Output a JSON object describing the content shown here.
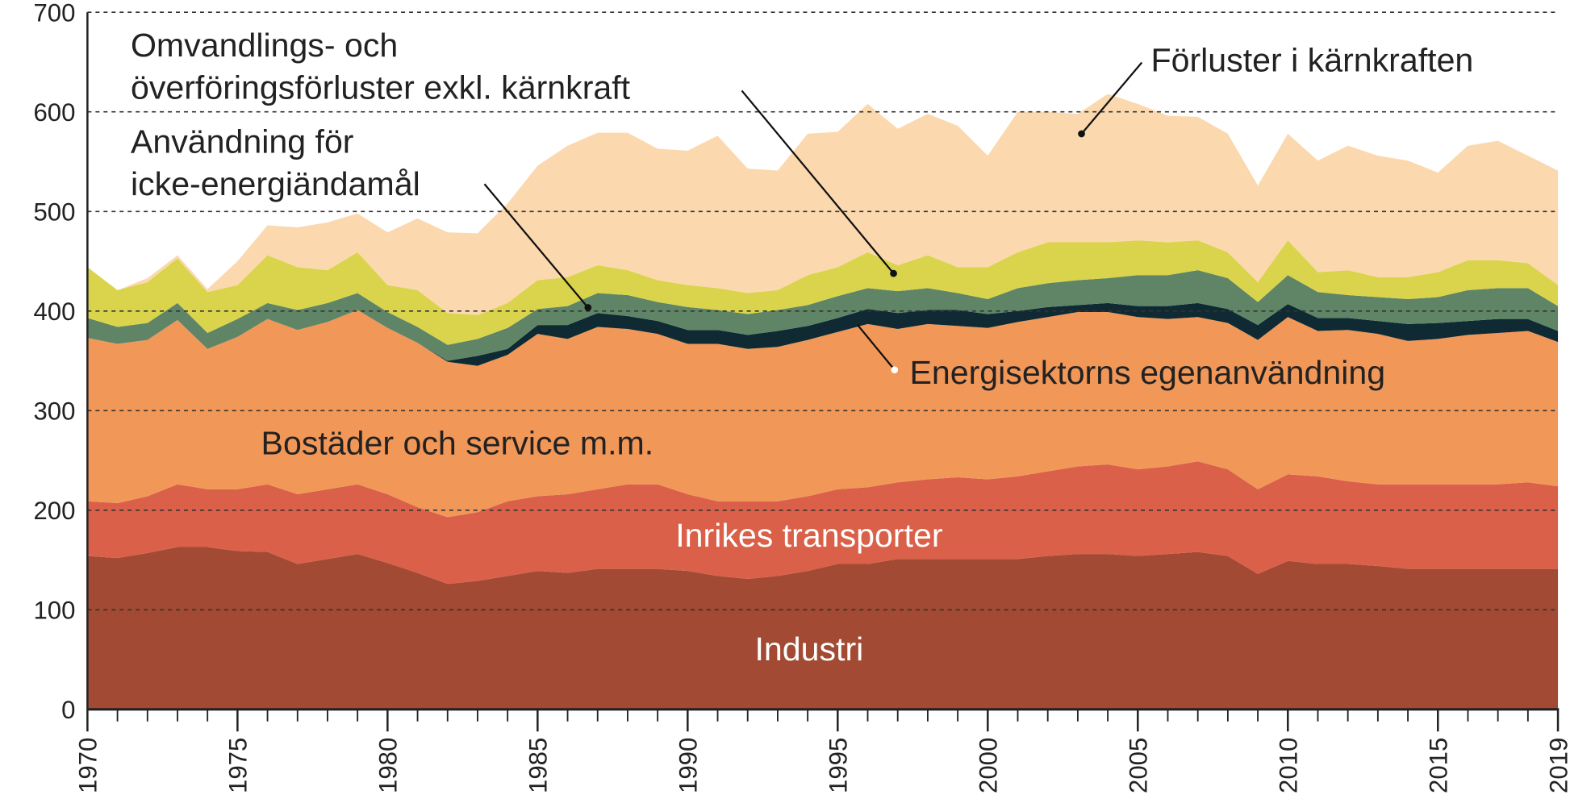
{
  "chart_data": {
    "type": "stacked_area",
    "x": [
      1970,
      1971,
      1972,
      1973,
      1974,
      1975,
      1976,
      1977,
      1978,
      1979,
      1980,
      1981,
      1982,
      1983,
      1984,
      1985,
      1986,
      1987,
      1988,
      1989,
      1990,
      1991,
      1992,
      1993,
      1994,
      1995,
      1996,
      1997,
      1998,
      1999,
      2000,
      2001,
      2002,
      2003,
      2004,
      2005,
      2006,
      2007,
      2008,
      2009,
      2010,
      2011,
      2012,
      2013,
      2014,
      2015,
      2016,
      2017,
      2018,
      2019
    ],
    "xlim": [
      1970,
      2019
    ],
    "xticks": [
      1970,
      1975,
      1980,
      1985,
      1990,
      1995,
      2000,
      2005,
      2010,
      2015,
      2019
    ],
    "ylim": [
      0,
      700
    ],
    "yticks": [
      0,
      100,
      200,
      300,
      400,
      500,
      600,
      700
    ],
    "grid": true,
    "series": [
      {
        "name": "Industri",
        "color": "#a24a33",
        "values": [
          154,
          152,
          157,
          163,
          163,
          159,
          158,
          146,
          151,
          156,
          147,
          137,
          126,
          129,
          134,
          139,
          137,
          141,
          141,
          141,
          139,
          134,
          131,
          134,
          139,
          146,
          146,
          151,
          151,
          151,
          151,
          151,
          154,
          156,
          156,
          154,
          156,
          158,
          154,
          136,
          149,
          146,
          146,
          144,
          141,
          141,
          141,
          141,
          141,
          141
        ]
      },
      {
        "name": "Inrikes transporter",
        "color": "#da6049",
        "values": [
          55,
          55,
          57,
          63,
          58,
          62,
          68,
          70,
          70,
          70,
          69,
          66,
          67,
          69,
          75,
          75,
          79,
          80,
          85,
          85,
          77,
          75,
          78,
          75,
          75,
          75,
          77,
          77,
          80,
          82,
          80,
          83,
          85,
          88,
          90,
          87,
          88,
          91,
          87,
          85,
          87,
          88,
          83,
          82,
          85,
          85,
          85,
          85,
          87,
          83
        ]
      },
      {
        "name": "Bostäder och service m.m.",
        "color": "#f19758",
        "values": [
          164,
          160,
          157,
          165,
          141,
          153,
          166,
          165,
          168,
          175,
          167,
          165,
          156,
          147,
          147,
          163,
          156,
          163,
          156,
          151,
          151,
          158,
          153,
          155,
          157,
          158,
          164,
          154,
          156,
          152,
          152,
          155,
          155,
          155,
          153,
          153,
          148,
          145,
          147,
          150,
          158,
          146,
          152,
          151,
          144,
          146,
          150,
          152,
          152,
          145
        ]
      },
      {
        "name": "Energisektorns egenanvändning",
        "color": "#0f2a33",
        "values": [
          0,
          0,
          0,
          0,
          0,
          0,
          0,
          0,
          0,
          0,
          0,
          0,
          1,
          10,
          6,
          9,
          14,
          14,
          13,
          13,
          14,
          14,
          14,
          16,
          14,
          14,
          15,
          16,
          14,
          16,
          14,
          11,
          10,
          7,
          9,
          11,
          13,
          14,
          14,
          15,
          13,
          13,
          12,
          13,
          17,
          16,
          14,
          14,
          12,
          11
        ]
      },
      {
        "name": "Användning för\nicke-energiändamål",
        "color": "#5f8566",
        "values": [
          20,
          17,
          17,
          17,
          16,
          18,
          16,
          20,
          19,
          17,
          16,
          16,
          16,
          17,
          21,
          16,
          19,
          20,
          21,
          19,
          23,
          20,
          21,
          21,
          21,
          22,
          21,
          22,
          22,
          17,
          15,
          23,
          24,
          25,
          25,
          31,
          31,
          33,
          31,
          23,
          29,
          26,
          23,
          24,
          25,
          26,
          31,
          31,
          31,
          25
        ]
      },
      {
        "name": "Omvandlings- och\növerföringsförluster exkl. kärnkraft",
        "color": "#d9d44b",
        "values": [
          51,
          37,
          41,
          45,
          41,
          34,
          48,
          43,
          33,
          41,
          27,
          37,
          32,
          24,
          25,
          29,
          29,
          28,
          25,
          22,
          22,
          22,
          21,
          20,
          30,
          29,
          36,
          26,
          33,
          26,
          32,
          36,
          41,
          38,
          36,
          35,
          33,
          30,
          26,
          20,
          35,
          20,
          25,
          20,
          22,
          25,
          30,
          28,
          25,
          21
        ]
      },
      {
        "name": "Förluster i kärnkraften",
        "color": "#fbd8ae",
        "values": [
          0,
          0,
          4,
          3,
          3,
          24,
          30,
          40,
          48,
          39,
          53,
          72,
          81,
          82,
          100,
          115,
          132,
          133,
          138,
          132,
          135,
          153,
          125,
          120,
          142,
          136,
          149,
          137,
          142,
          142,
          112,
          141,
          131,
          129,
          149,
          137,
          127,
          124,
          119,
          97,
          107,
          112,
          125,
          122,
          117,
          100,
          115,
          120,
          108,
          115
        ]
      }
    ]
  }
}
